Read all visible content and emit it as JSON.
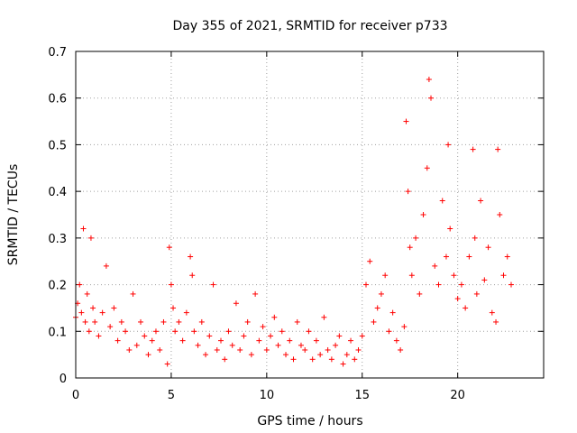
{
  "chart_data": {
    "type": "scatter",
    "title": "Day 355 of 2021, SRMTID for receiver p733",
    "xlabel": "GPS time / hours",
    "ylabel": "SRMTID / TECUs",
    "xlim": [
      0,
      24.5
    ],
    "ylim": [
      0,
      0.7
    ],
    "xticks": [
      0,
      5,
      10,
      15,
      20
    ],
    "yticks": [
      0,
      0.1,
      0.2,
      0.3,
      0.4,
      0.5,
      0.6,
      0.7
    ],
    "xtick_labels": [
      "0",
      "5",
      "10",
      "15",
      "20"
    ],
    "ytick_labels": [
      "0",
      "0.1",
      "0.2",
      "0.3",
      "0.4",
      "0.5",
      "0.6",
      "0.7"
    ],
    "grid": true,
    "marker": "+",
    "marker_color": "#ff0000",
    "series": [
      {
        "name": "p733",
        "x": [
          0.0,
          0.1,
          0.2,
          0.3,
          0.4,
          0.5,
          0.6,
          0.7,
          0.8,
          0.9,
          1.0,
          1.2,
          1.4,
          1.6,
          1.8,
          2.0,
          2.2,
          2.4,
          2.6,
          2.8,
          3.0,
          3.2,
          3.4,
          3.6,
          3.8,
          4.0,
          4.2,
          4.4,
          4.6,
          4.8,
          4.9,
          5.0,
          5.1,
          5.2,
          5.4,
          5.6,
          5.8,
          6.0,
          6.1,
          6.2,
          6.4,
          6.6,
          6.8,
          7.0,
          7.2,
          7.4,
          7.6,
          7.8,
          8.0,
          8.2,
          8.4,
          8.6,
          8.8,
          9.0,
          9.2,
          9.4,
          9.6,
          9.8,
          10.0,
          10.2,
          10.4,
          10.6,
          10.8,
          11.0,
          11.2,
          11.4,
          11.6,
          11.8,
          12.0,
          12.2,
          12.4,
          12.6,
          12.8,
          13.0,
          13.2,
          13.4,
          13.6,
          13.8,
          14.0,
          14.2,
          14.4,
          14.6,
          14.8,
          15.0,
          15.2,
          15.4,
          15.6,
          15.8,
          16.0,
          16.2,
          16.4,
          16.6,
          16.8,
          17.0,
          17.2,
          17.3,
          17.4,
          17.5,
          17.6,
          17.8,
          18.0,
          18.2,
          18.4,
          18.5,
          18.6,
          18.8,
          19.0,
          19.2,
          19.4,
          19.5,
          19.6,
          19.8,
          20.0,
          20.2,
          20.4,
          20.6,
          20.8,
          20.9,
          21.0,
          21.2,
          21.4,
          21.6,
          21.8,
          22.0,
          22.1,
          22.2,
          22.4,
          22.6,
          22.8
        ],
        "y": [
          0.13,
          0.16,
          0.2,
          0.14,
          0.32,
          0.12,
          0.18,
          0.1,
          0.3,
          0.15,
          0.12,
          0.09,
          0.14,
          0.24,
          0.11,
          0.15,
          0.08,
          0.12,
          0.1,
          0.06,
          0.18,
          0.07,
          0.12,
          0.09,
          0.05,
          0.08,
          0.1,
          0.06,
          0.12,
          0.03,
          0.28,
          0.2,
          0.15,
          0.1,
          0.12,
          0.08,
          0.14,
          0.26,
          0.22,
          0.1,
          0.07,
          0.12,
          0.05,
          0.09,
          0.2,
          0.06,
          0.08,
          0.04,
          0.1,
          0.07,
          0.16,
          0.06,
          0.09,
          0.12,
          0.05,
          0.18,
          0.08,
          0.11,
          0.06,
          0.09,
          0.13,
          0.07,
          0.1,
          0.05,
          0.08,
          0.04,
          0.12,
          0.07,
          0.06,
          0.1,
          0.04,
          0.08,
          0.05,
          0.13,
          0.06,
          0.04,
          0.07,
          0.09,
          0.03,
          0.05,
          0.08,
          0.04,
          0.06,
          0.09,
          0.2,
          0.25,
          0.12,
          0.15,
          0.18,
          0.22,
          0.1,
          0.14,
          0.08,
          0.06,
          0.11,
          0.55,
          0.4,
          0.28,
          0.22,
          0.3,
          0.18,
          0.35,
          0.45,
          0.64,
          0.6,
          0.24,
          0.2,
          0.38,
          0.26,
          0.5,
          0.32,
          0.22,
          0.17,
          0.2,
          0.15,
          0.26,
          0.49,
          0.3,
          0.18,
          0.38,
          0.21,
          0.28,
          0.14,
          0.12,
          0.49,
          0.35,
          0.22,
          0.26,
          0.2
        ]
      }
    ]
  }
}
